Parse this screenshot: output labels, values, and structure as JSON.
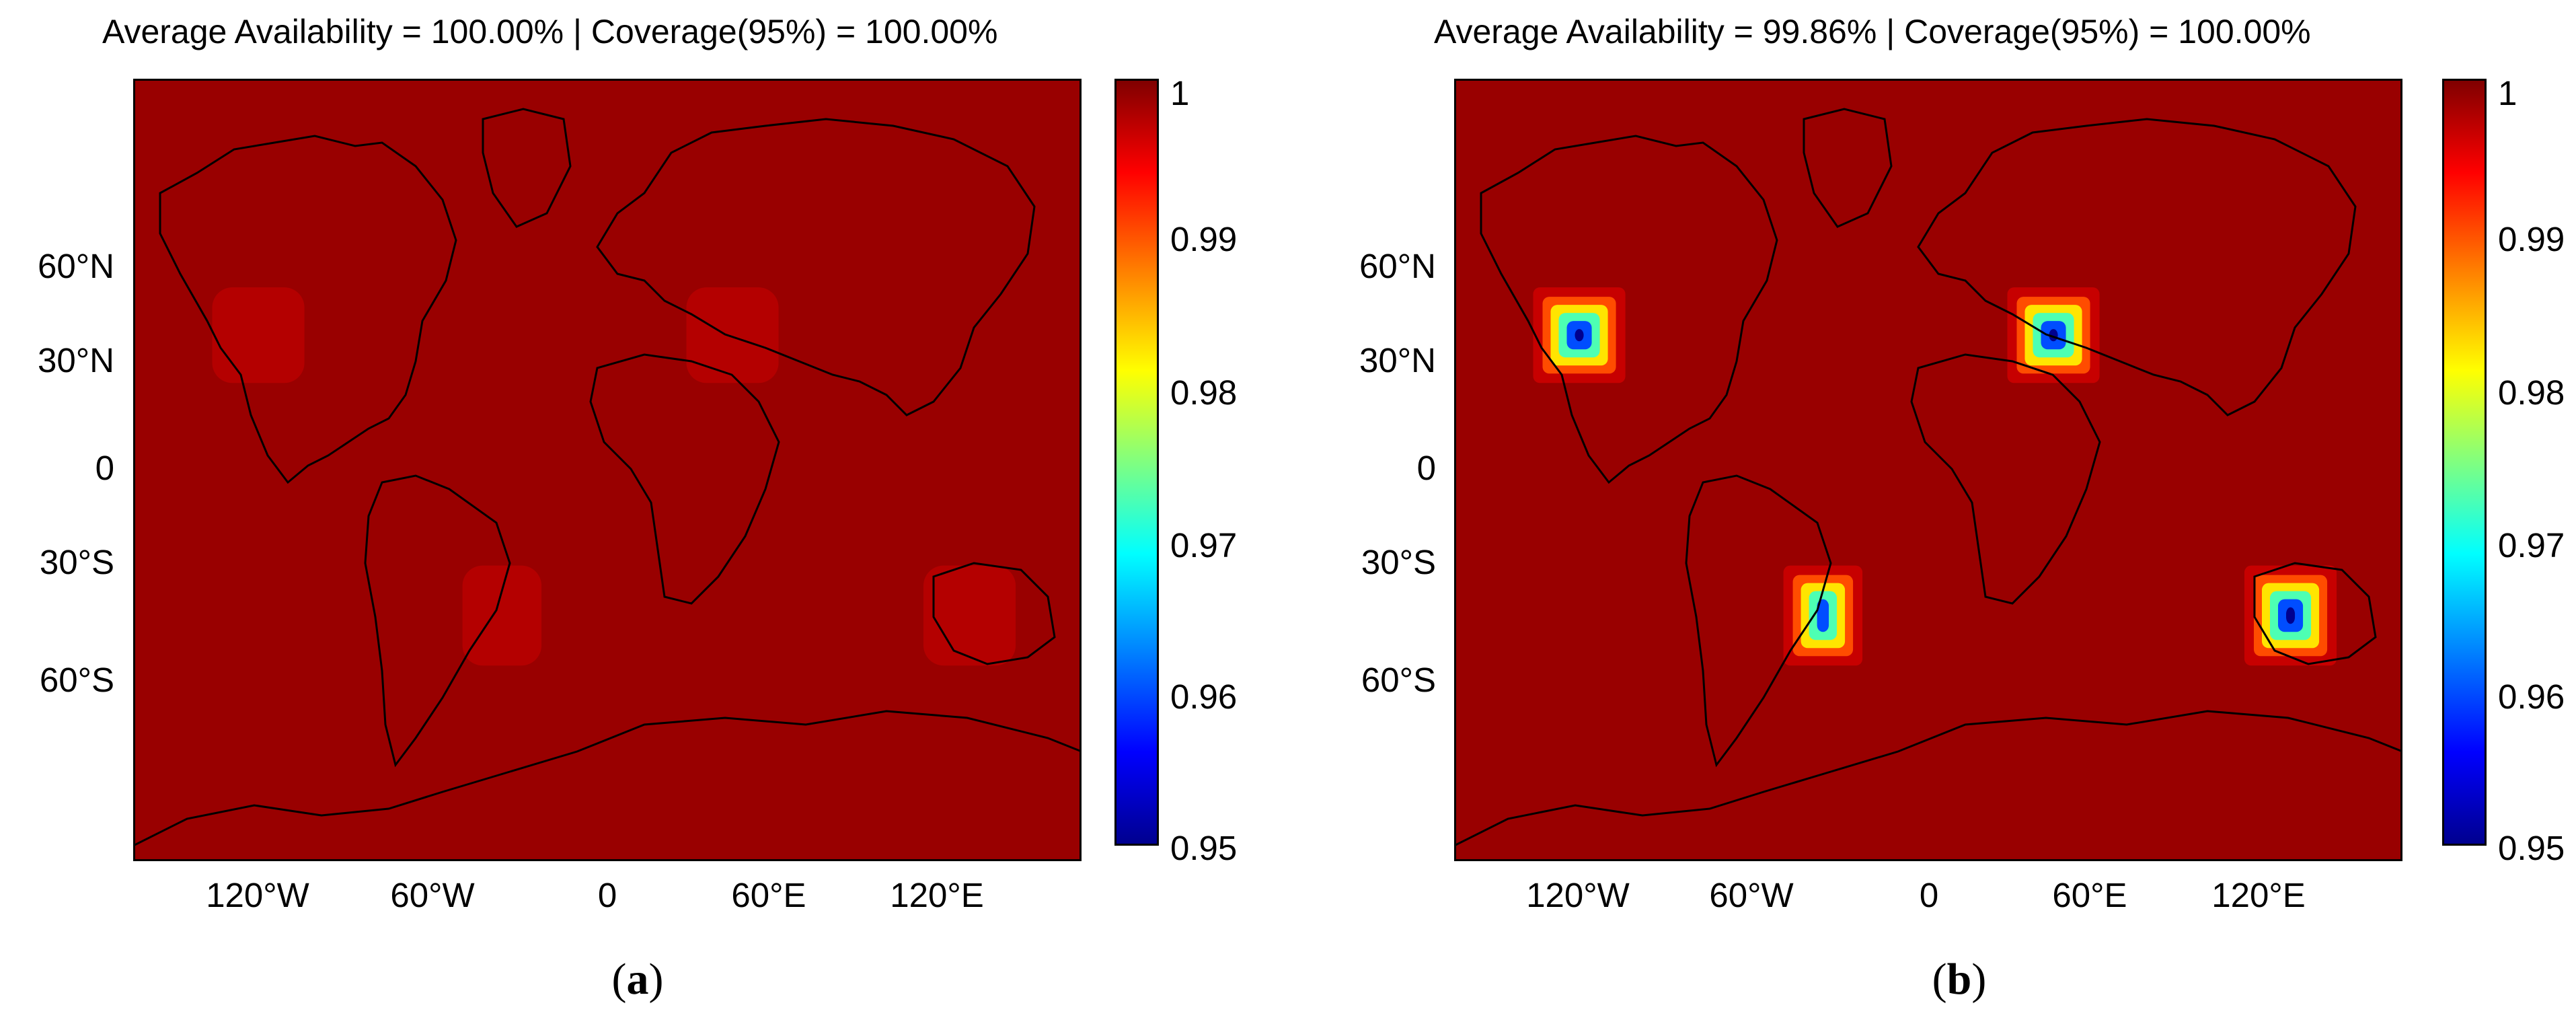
{
  "colors": {
    "background_field": "#990000",
    "land_outline": "#000000",
    "low_region": "#00008f"
  },
  "chart_data": [
    {
      "type": "heatmap",
      "panel_caption": "a",
      "title": "Average Availability = 100.00% | Coverage(95%) = 100.00%",
      "xlabel": "",
      "ylabel": "",
      "x_ticks": [
        "120°W",
        "60°W",
        "0",
        "60°E",
        "120°E"
      ],
      "y_ticks": [
        "60°N",
        "30°N",
        "0",
        "30°S",
        "60°S"
      ],
      "colorbar_ticks": [
        "1",
        "0.99",
        "0.98",
        "0.97",
        "0.96",
        "0.95"
      ],
      "colorbar_range": [
        0.95,
        1
      ],
      "field_value": 1.0,
      "regions": [
        {
          "lon": [
            -150,
            -115
          ],
          "lat": [
            20,
            42
          ],
          "value": 0.997
        },
        {
          "lon": [
            30,
            65
          ],
          "lat": [
            20,
            42
          ],
          "value": 0.997
        },
        {
          "lon": [
            -55,
            -25
          ],
          "lat": [
            -45,
            -22
          ],
          "value": 0.997
        },
        {
          "lon": [
            120,
            155
          ],
          "lat": [
            -45,
            -22
          ],
          "value": 0.997
        }
      ]
    },
    {
      "type": "heatmap",
      "panel_caption": "b",
      "title": "Average Availability = 99.86% | Coverage(95%) = 100.00%",
      "xlabel": "",
      "ylabel": "",
      "x_ticks": [
        "120°W",
        "60°W",
        "0",
        "60°E",
        "120°E"
      ],
      "y_ticks": [
        "60°N",
        "30°N",
        "0",
        "30°S",
        "60°S"
      ],
      "colorbar_ticks": [
        "1",
        "0.99",
        "0.98",
        "0.97",
        "0.96",
        "0.95"
      ],
      "colorbar_range": [
        0.95,
        1
      ],
      "field_value": 1.0,
      "regions": [
        {
          "lon": [
            -150,
            -115
          ],
          "lat": [
            20,
            42
          ],
          "value": 0.95
        },
        {
          "lon": [
            30,
            65
          ],
          "lat": [
            20,
            42
          ],
          "value": 0.95
        },
        {
          "lon": [
            -55,
            -25
          ],
          "lat": [
            -45,
            -22
          ],
          "value": 0.95
        },
        {
          "lon": [
            120,
            155
          ],
          "lat": [
            -45,
            -22
          ],
          "value": 0.95
        }
      ]
    }
  ]
}
